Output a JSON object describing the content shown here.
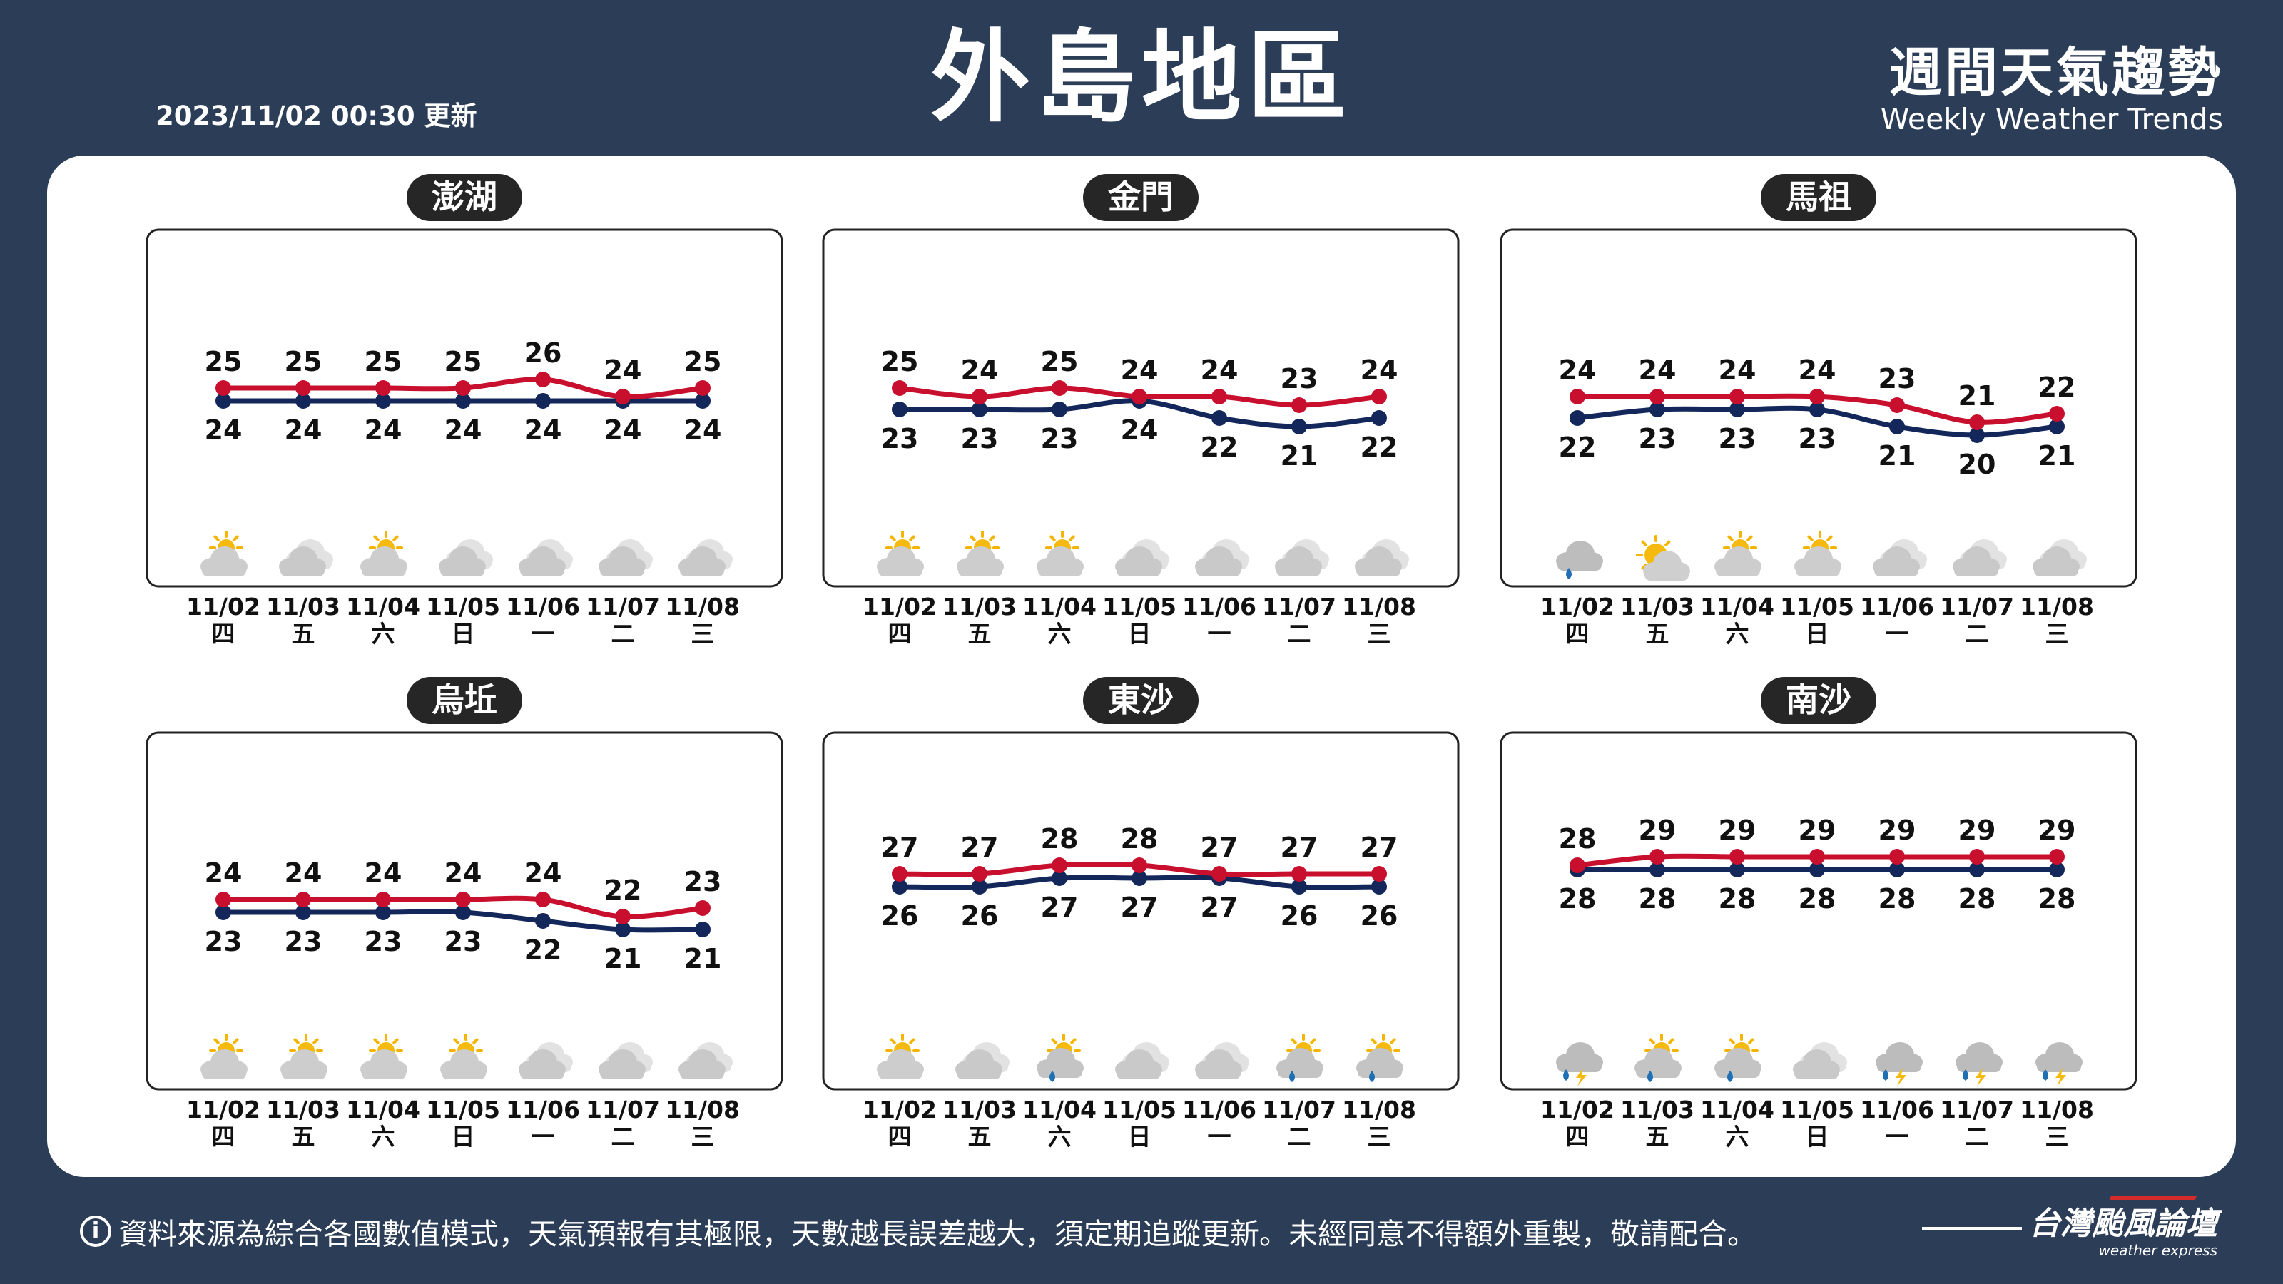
{
  "header": {
    "updated": "2023/11/02 00:30 更新",
    "title": "外島地區",
    "brand_zh": "週間天氣趨勢",
    "brand_en": "Weekly Weather Trends"
  },
  "footer": {
    "info_icon": "i",
    "note": "資料來源為綜合各國數值模式，天氣預報有其極限，天數越長誤差越大，須定期追蹤更新。未經同意不得額外重製，敬請配合。",
    "logo_zh": "台灣颱風論壇",
    "logo_en": "weather express"
  },
  "colors": {
    "background": "#2c3e57",
    "high_line": "#c8102e",
    "low_line": "#13275a",
    "label_pill": "#262626"
  },
  "chart_data": [
    {
      "type": "line",
      "title": "澎湖",
      "categories": [
        "11/02",
        "11/03",
        "11/04",
        "11/05",
        "11/06",
        "11/07",
        "11/08"
      ],
      "weekdays": [
        "四",
        "五",
        "六",
        "日",
        "一",
        "二",
        "三"
      ],
      "series": [
        {
          "values": [
            25,
            25,
            25,
            25,
            26,
            24,
            25
          ],
          "color": "#c8102e"
        },
        {
          "values": [
            24,
            24,
            24,
            24,
            24,
            24,
            24
          ],
          "color": "#13275a"
        }
      ],
      "icons": [
        "partly-sunny-icon",
        "cloudy-icon",
        "partly-sunny-icon",
        "cloudy-icon",
        "cloudy-icon",
        "cloudy-icon",
        "cloudy-icon"
      ]
    },
    {
      "type": "line",
      "title": "金門",
      "categories": [
        "11/02",
        "11/03",
        "11/04",
        "11/05",
        "11/06",
        "11/07",
        "11/08"
      ],
      "weekdays": [
        "四",
        "五",
        "六",
        "日",
        "一",
        "二",
        "三"
      ],
      "series": [
        {
          "values": [
            25,
            24,
            25,
            24,
            24,
            23,
            24
          ],
          "color": "#c8102e"
        },
        {
          "values": [
            23,
            23,
            23,
            24,
            22,
            21,
            22
          ],
          "color": "#13275a"
        }
      ],
      "icons": [
        "partly-sunny-icon",
        "partly-sunny-icon",
        "partly-sunny-icon",
        "cloudy-icon",
        "cloudy-icon",
        "cloudy-icon",
        "cloudy-icon"
      ]
    },
    {
      "type": "line",
      "title": "馬祖",
      "categories": [
        "11/02",
        "11/03",
        "11/04",
        "11/05",
        "11/06",
        "11/07",
        "11/08"
      ],
      "weekdays": [
        "四",
        "五",
        "六",
        "日",
        "一",
        "二",
        "三"
      ],
      "series": [
        {
          "values": [
            24,
            24,
            24,
            24,
            23,
            21,
            22
          ],
          "color": "#c8102e"
        },
        {
          "values": [
            22,
            23,
            23,
            23,
            21,
            20,
            21
          ],
          "color": "#13275a"
        }
      ],
      "icons": [
        "cloud-rain-icon",
        "sunny-icon",
        "partly-sunny-icon",
        "partly-sunny-icon",
        "cloudy-icon",
        "cloudy-icon",
        "cloudy-icon"
      ]
    },
    {
      "type": "line",
      "title": "烏坵",
      "categories": [
        "11/02",
        "11/03",
        "11/04",
        "11/05",
        "11/06",
        "11/07",
        "11/08"
      ],
      "weekdays": [
        "四",
        "五",
        "六",
        "日",
        "一",
        "二",
        "三"
      ],
      "series": [
        {
          "values": [
            24,
            24,
            24,
            24,
            24,
            22,
            23
          ],
          "color": "#c8102e"
        },
        {
          "values": [
            23,
            23,
            23,
            23,
            22,
            21,
            21
          ],
          "color": "#13275a"
        }
      ],
      "icons": [
        "partly-sunny-icon",
        "partly-sunny-icon",
        "partly-sunny-icon",
        "partly-sunny-icon",
        "cloudy-icon",
        "cloudy-icon",
        "cloudy-icon"
      ]
    },
    {
      "type": "line",
      "title": "東沙",
      "categories": [
        "11/02",
        "11/03",
        "11/04",
        "11/05",
        "11/06",
        "11/07",
        "11/08"
      ],
      "weekdays": [
        "四",
        "五",
        "六",
        "日",
        "一",
        "二",
        "三"
      ],
      "series": [
        {
          "values": [
            27,
            27,
            28,
            28,
            27,
            27,
            27
          ],
          "color": "#c8102e"
        },
        {
          "values": [
            26,
            26,
            27,
            27,
            27,
            26,
            26
          ],
          "color": "#13275a"
        }
      ],
      "icons": [
        "partly-sunny-icon",
        "cloudy-icon",
        "sun-rain-icon",
        "cloudy-icon",
        "cloudy-icon",
        "sun-rain-icon",
        "sun-rain-icon"
      ]
    },
    {
      "type": "line",
      "title": "南沙",
      "categories": [
        "11/02",
        "11/03",
        "11/04",
        "11/05",
        "11/06",
        "11/07",
        "11/08"
      ],
      "weekdays": [
        "四",
        "五",
        "六",
        "日",
        "一",
        "二",
        "三"
      ],
      "series": [
        {
          "values": [
            28,
            29,
            29,
            29,
            29,
            29,
            29
          ],
          "color": "#c8102e"
        },
        {
          "values": [
            28,
            28,
            28,
            28,
            28,
            28,
            28
          ],
          "color": "#13275a"
        }
      ],
      "icons": [
        "thunderstorm-icon",
        "sun-rain-icon",
        "sun-rain-icon",
        "cloudy-icon",
        "thunderstorm-icon",
        "thunderstorm-icon",
        "thunderstorm-icon"
      ]
    }
  ]
}
